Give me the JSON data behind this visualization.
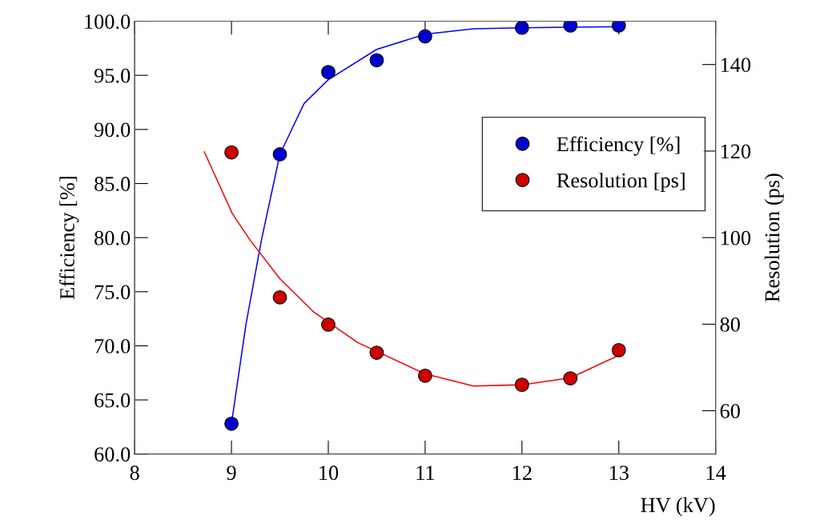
{
  "chart_data": {
    "type": "scatter",
    "xlabel": "HV (kV)",
    "ylabel": "Efficiency [%]",
    "y2label": "Resolution (ps)",
    "xlim": [
      8,
      14
    ],
    "xticks": [
      8,
      9,
      10,
      11,
      12,
      13,
      14
    ],
    "ylim": [
      60,
      100
    ],
    "yticks": [
      {
        "value": 60,
        "label": "60.0"
      },
      {
        "value": 65,
        "label": "65.0"
      },
      {
        "value": 70,
        "label": "70.0"
      },
      {
        "value": 75,
        "label": "75.0"
      },
      {
        "value": 80,
        "label": "80.0"
      },
      {
        "value": 85,
        "label": "85.0"
      },
      {
        "value": 90,
        "label": "90.0"
      },
      {
        "value": 95,
        "label": "95.0"
      },
      {
        "value": 100,
        "label": "100.0"
      }
    ],
    "y2lim": [
      50,
      150
    ],
    "y2ticks": [
      60,
      80,
      100,
      120,
      140
    ],
    "grid": false,
    "legend": "right",
    "series": [
      {
        "type": "line",
        "marker": "none",
        "color": "#0000ff",
        "x": [
          9,
          9.15,
          9.31,
          9.5,
          9.75,
          10,
          10.5,
          11,
          11.5,
          12,
          12.5,
          13
        ],
        "values": [
          62.8,
          72,
          79.8,
          87.7,
          92.4,
          94.6,
          97.4,
          98.8,
          99.3,
          99.4,
          99.45,
          99.5
        ]
      },
      {
        "type": "line",
        "marker": "none",
        "axis": "y2",
        "color": "#ff0000",
        "x": [
          8.72,
          9.01,
          9.19,
          9.5,
          9.85,
          10.3,
          11,
          11.5,
          12,
          12.5,
          13
        ],
        "values": [
          119.8,
          105.5,
          99.5,
          90.5,
          82.8,
          75.8,
          68.5,
          65.7,
          66.0,
          67.6,
          72.8
        ]
      },
      {
        "name": "Efficiency [%]",
        "marker": "circle",
        "color": "#0000cc",
        "x": [
          9,
          9.5,
          10,
          10.5,
          11,
          12,
          12.5,
          13
        ],
        "values": [
          62.8,
          87.7,
          95.3,
          96.4,
          98.6,
          99.4,
          99.6,
          99.6
        ]
      },
      {
        "name": "Resolution [ps]",
        "marker": "circle",
        "axis": "y2",
        "color": "#cc0000",
        "x": [
          9,
          9.5,
          10,
          10.5,
          11,
          12,
          12.5,
          13
        ],
        "values": [
          119.7,
          86.2,
          79.9,
          73.4,
          68.1,
          66.0,
          67.5,
          74.0
        ]
      }
    ]
  }
}
